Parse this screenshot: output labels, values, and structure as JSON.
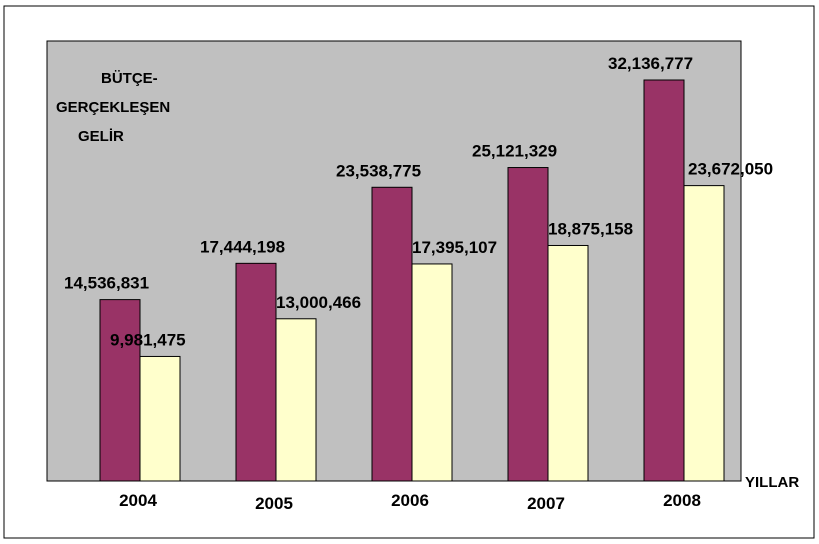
{
  "colors": {
    "plot_background": "#c0c0c0",
    "budget": "#993366",
    "actual": "#ffffcc",
    "stroke": "#000000"
  },
  "chart_data": {
    "type": "bar",
    "categories": [
      "2004",
      "2005",
      "2006",
      "2007",
      "2008"
    ],
    "series": [
      {
        "name": "BÜTÇE",
        "values": [
          14536831,
          17444198,
          23538775,
          25121329,
          32136777
        ]
      },
      {
        "name": "GERÇEKLEŞEN",
        "values": [
          9981475,
          13000466,
          17395107,
          18875158,
          23672050
        ]
      }
    ],
    "value_labels": [
      [
        "14,536,831",
        "17,444,198",
        "23,538,775",
        "25,121,329",
        "32,136,777"
      ],
      [
        "9,981,475",
        "13,000,466",
        "17,395,107",
        "18,875,158",
        "23,672,050"
      ]
    ],
    "legend_lines": [
      "BÜTÇE-",
      "GERÇEKLEŞEN",
      "GELİR"
    ],
    "legend_position": "top-left",
    "xlabel": "YILLAR",
    "ylabel": "",
    "ylim": [
      0,
      35000000
    ],
    "grid": false
  }
}
